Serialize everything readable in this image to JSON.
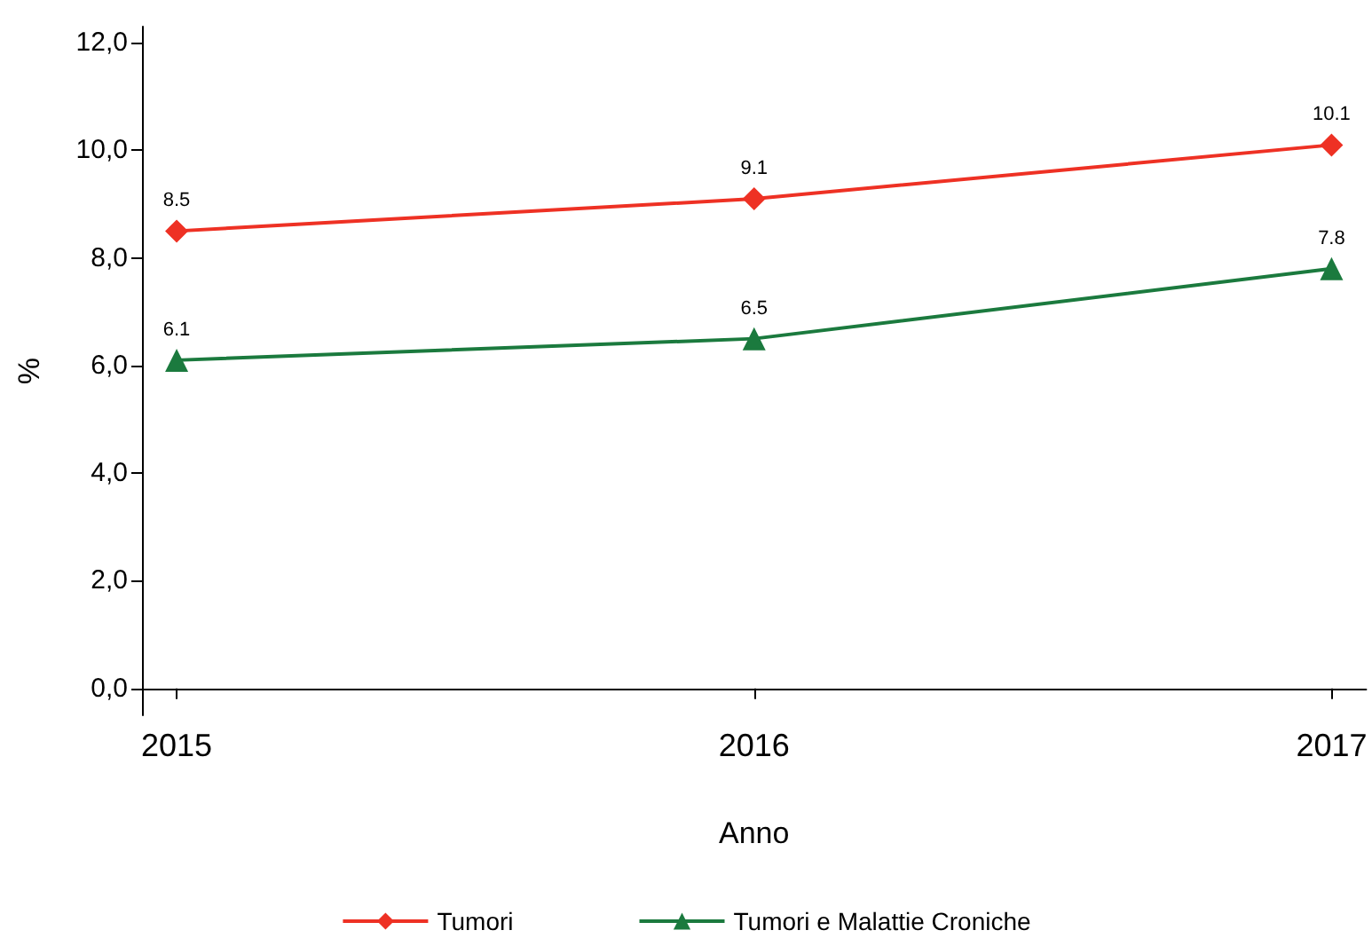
{
  "chart_data": {
    "type": "line",
    "xlabel": "Anno",
    "ylabel": "%",
    "x": [
      2015,
      2016,
      2017
    ],
    "series": [
      {
        "name": "Tumori",
        "color": "#ee3124",
        "values": [
          8.5,
          9.1,
          10.1
        ],
        "marker": "diamond"
      },
      {
        "name": "Tumori e Malattie Croniche",
        "color": "#1b7a3e",
        "values": [
          6.1,
          6.5,
          7.8
        ],
        "marker": "triangle"
      }
    ],
    "xlim": [
      2014.94,
      2017.06
    ],
    "xticks": [
      2015,
      2016,
      2017
    ],
    "ylim": [
      -0.5,
      12.3
    ],
    "yticks": [
      {
        "value": 0,
        "label": "0,0"
      },
      {
        "value": 2,
        "label": "2,0"
      },
      {
        "value": 4,
        "label": "4,0"
      },
      {
        "value": 6,
        "label": "6,0"
      },
      {
        "value": 8,
        "label": "8,0"
      },
      {
        "value": 10,
        "label": "10,0"
      },
      {
        "value": 12,
        "label": "12,0"
      }
    ],
    "data_labels": true,
    "grid": false,
    "legend": "bottom",
    "line_style": "solid"
  }
}
